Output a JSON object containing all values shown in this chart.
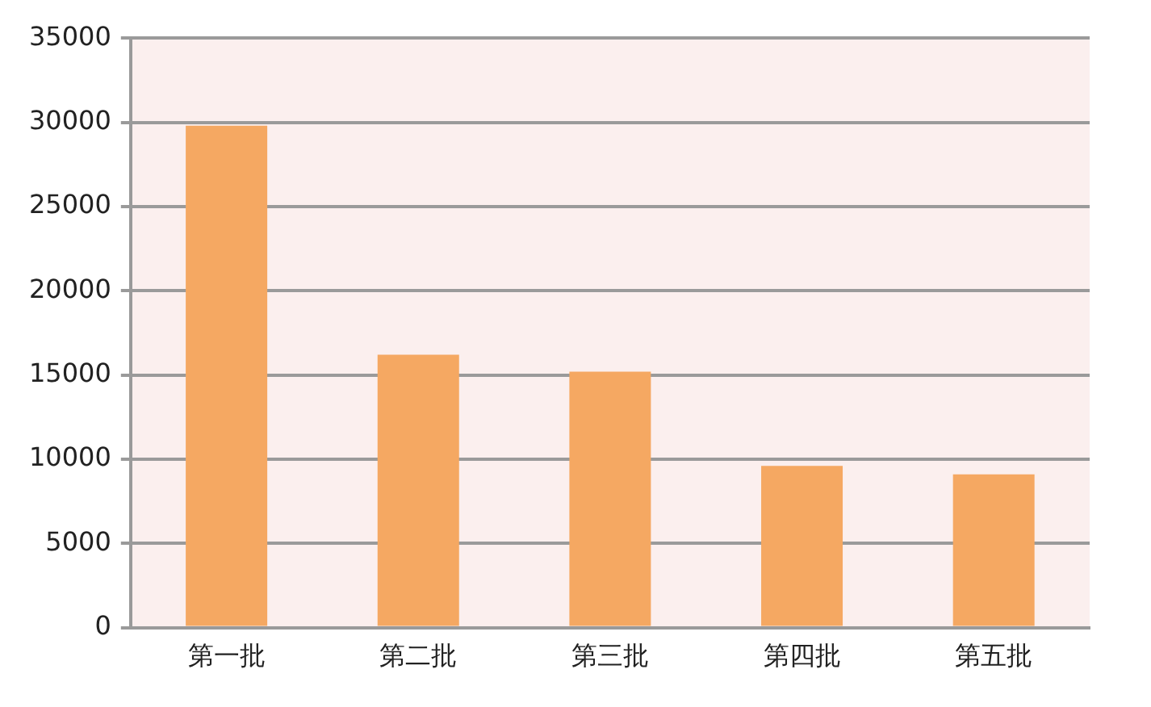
{
  "chart_data": {
    "type": "bar",
    "categories": [
      "第一批",
      "第二批",
      "第三批",
      "第四批",
      "第五批"
    ],
    "values": [
      29800,
      16200,
      15200,
      9600,
      9100
    ],
    "color": "#f5a862",
    "ylim": [
      0,
      35000
    ],
    "yticks": [
      0,
      5000,
      10000,
      15000,
      20000,
      25000,
      30000,
      35000
    ],
    "grid": "y",
    "legend": false
  }
}
